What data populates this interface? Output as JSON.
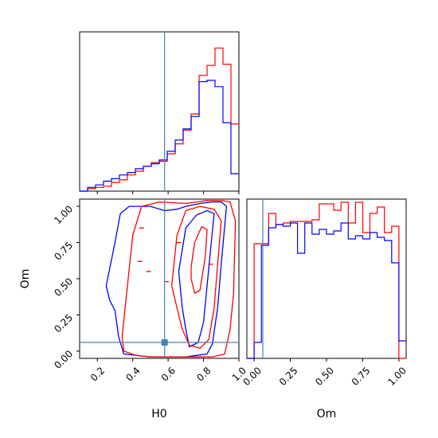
{
  "chart_data": {
    "type": "corner",
    "parameters": [
      "H0",
      "Om"
    ],
    "truths": {
      "H0": 0.58,
      "Om": 0.06
    },
    "colors": {
      "red_series": "#ff0000",
      "blue_series": "#0000ff",
      "truth": "#4682b4",
      "axes": "#000000"
    },
    "ranges": {
      "H0": [
        0.1,
        1.0
      ],
      "Om": [
        -0.05,
        1.05
      ]
    },
    "grid": false,
    "legend": "none",
    "panels": [
      {
        "id": "hist-H0",
        "type": "histogram-step",
        "xlabel": "",
        "xticks": [
          0.2,
          0.4,
          0.6,
          0.8,
          1.0
        ],
        "bin_edges": [
          0.1,
          0.145,
          0.19,
          0.235,
          0.28,
          0.325,
          0.37,
          0.415,
          0.46,
          0.505,
          0.55,
          0.595,
          0.64,
          0.685,
          0.73,
          0.775,
          0.82,
          0.865,
          0.91,
          0.955,
          1.0
        ],
        "series": [
          {
            "color": "red",
            "values": [
              0,
              2,
              3,
              4,
              7,
              9,
              13,
              16,
              20,
              23,
              24,
              30,
              38,
              49,
              62,
              93,
              101,
              115,
              102,
              54
            ]
          },
          {
            "color": "blue",
            "values": [
              0,
              3,
              5,
              8,
              10,
              13,
              15,
              18,
              20,
              22,
              25,
              32,
              41,
              50,
              60,
              88,
              89,
              84,
              55,
              14
            ]
          }
        ],
        "ymax": 128
      },
      {
        "id": "hist-Om",
        "type": "histogram-step",
        "xlabel": "Om",
        "xticks": [
          0.0,
          0.25,
          0.5,
          0.75,
          1.0
        ],
        "xtick_labels": [
          "0.00",
          "0.25",
          "0.50",
          "0.75",
          "1.00"
        ],
        "bin_edges": [
          -0.05,
          0.0,
          0.05,
          0.1,
          0.15,
          0.2,
          0.25,
          0.3,
          0.35,
          0.4,
          0.45,
          0.5,
          0.55,
          0.6,
          0.65,
          0.7,
          0.75,
          0.8,
          0.85,
          0.9,
          0.95,
          1.0,
          1.05
        ],
        "series": [
          {
            "color": "red",
            "values": [
              0,
              72,
              72,
              91,
              84,
              85,
              86,
              86,
              86,
              87,
              97,
              97,
              93,
              98,
              85,
              98,
              79,
              91,
              95,
              79,
              83,
              0
            ]
          },
          {
            "color": "blue",
            "values": [
              0,
              10,
              71,
              82,
              84,
              83,
              85,
              66,
              85,
              78,
              81,
              78,
              80,
              85,
              75,
              77,
              75,
              79,
              76,
              74,
              60,
              11
            ]
          }
        ],
        "ymax": 100
      },
      {
        "id": "contour-H0-Om",
        "type": "contour-2d",
        "xlabel": "H0",
        "ylabel": "Om",
        "xticks": [
          0.2,
          0.4,
          0.6,
          0.8,
          1.0
        ],
        "yticks": [
          0.0,
          0.25,
          0.5,
          0.75,
          1.0
        ],
        "ytick_labels": [
          "0.00",
          "0.25",
          "0.50",
          "0.75",
          "1.00"
        ],
        "contours": [
          {
            "color": "blue",
            "points": [
              [
                0.25,
                0.45
              ],
              [
                0.3,
                0.75
              ],
              [
                0.33,
                0.95
              ],
              [
                0.38,
                1.0
              ],
              [
                0.5,
                1.0
              ],
              [
                0.58,
                0.97
              ],
              [
                0.65,
                0.98
              ],
              [
                0.7,
                1.0
              ],
              [
                0.78,
                1.02
              ],
              [
                0.85,
                1.03
              ],
              [
                0.9,
                1.03
              ],
              [
                0.93,
                1.0
              ],
              [
                0.9,
                0.6
              ],
              [
                0.88,
                0.3
              ],
              [
                0.85,
                0.05
              ],
              [
                0.82,
                -0.02
              ],
              [
                0.7,
                -0.04
              ],
              [
                0.5,
                -0.04
              ],
              [
                0.35,
                -0.02
              ],
              [
                0.32,
                0.1
              ],
              [
                0.3,
                0.28
              ],
              [
                0.27,
                0.35
              ],
              [
                0.25,
                0.45
              ]
            ]
          },
          {
            "color": "blue",
            "points": [
              [
                0.66,
                0.55
              ],
              [
                0.7,
                0.85
              ],
              [
                0.76,
                0.94
              ],
              [
                0.82,
                0.97
              ],
              [
                0.86,
                0.95
              ],
              [
                0.84,
                0.7
              ],
              [
                0.82,
                0.45
              ],
              [
                0.8,
                0.2
              ],
              [
                0.77,
                0.06
              ],
              [
                0.72,
                0.03
              ],
              [
                0.7,
                0.15
              ],
              [
                0.68,
                0.3
              ],
              [
                0.66,
                0.55
              ]
            ]
          },
          {
            "color": "red",
            "points": [
              [
                0.34,
                0.1
              ],
              [
                0.37,
                0.45
              ],
              [
                0.4,
                0.8
              ],
              [
                0.45,
                1.0
              ],
              [
                0.55,
                1.03
              ],
              [
                0.7,
                1.02
              ],
              [
                0.82,
                1.04
              ],
              [
                0.9,
                1.04
              ],
              [
                0.95,
                1.03
              ],
              [
                0.98,
                0.9
              ],
              [
                0.97,
                0.4
              ],
              [
                0.95,
                0.15
              ],
              [
                0.92,
                -0.02
              ],
              [
                0.85,
                -0.04
              ],
              [
                0.7,
                -0.04
              ],
              [
                0.5,
                -0.04
              ],
              [
                0.42,
                -0.03
              ],
              [
                0.35,
                0.0
              ],
              [
                0.34,
                0.1
              ]
            ]
          },
          {
            "color": "red",
            "points": [
              [
                0.62,
                0.45
              ],
              [
                0.65,
                0.8
              ],
              [
                0.7,
                0.97
              ],
              [
                0.78,
                1.0
              ],
              [
                0.86,
                0.98
              ],
              [
                0.9,
                0.9
              ],
              [
                0.88,
                0.6
              ],
              [
                0.86,
                0.3
              ],
              [
                0.83,
                0.08
              ],
              [
                0.78,
                0.02
              ],
              [
                0.72,
                0.04
              ],
              [
                0.68,
                0.15
              ],
              [
                0.65,
                0.3
              ],
              [
                0.62,
                0.45
              ]
            ]
          },
          {
            "color": "red",
            "points": [
              [
                0.73,
                0.58
              ],
              [
                0.75,
                0.75
              ],
              [
                0.79,
                0.86
              ],
              [
                0.82,
                0.84
              ],
              [
                0.81,
                0.65
              ],
              [
                0.78,
                0.42
              ],
              [
                0.75,
                0.4
              ],
              [
                0.73,
                0.5
              ],
              [
                0.73,
                0.58
              ]
            ]
          }
        ]
      }
    ]
  }
}
